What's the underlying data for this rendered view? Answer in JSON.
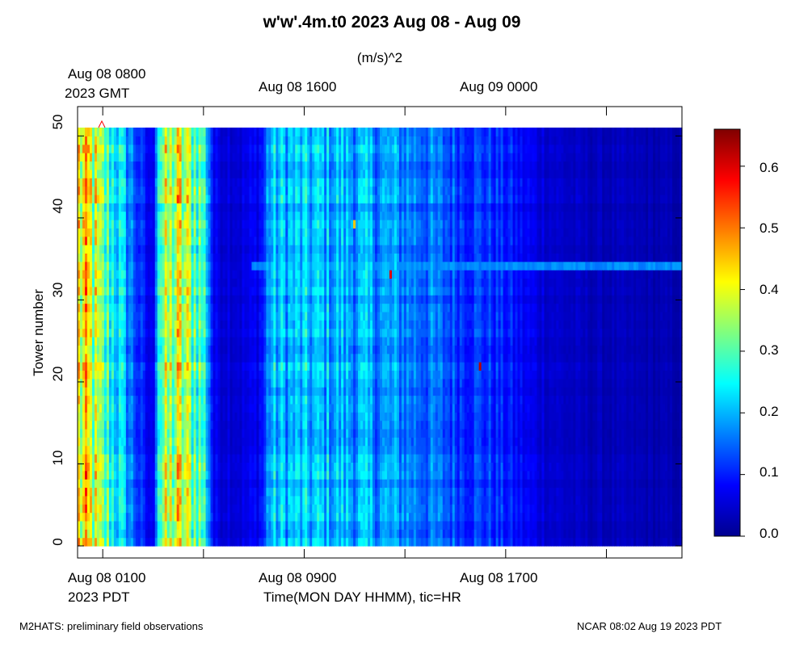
{
  "chart_data": {
    "type": "heatmap",
    "title": "w'w'.4m.t0 2023 Aug 08 - Aug 09",
    "colorbar_label": "(m/s)^2",
    "ylabel": "Tower number",
    "xlabel": "Time(MON DAY HHMM), tic=HR",
    "x_top_labels": [
      "Aug 08 0800",
      "Aug 08 1600",
      "Aug 09 0000"
    ],
    "x_top_timezone": "2023 GMT",
    "x_bottom_labels": [
      "Aug 08 0100",
      "Aug 08 0900",
      "Aug 08 1700"
    ],
    "x_bottom_timezone": "2023 PDT",
    "x_range_pdt": [
      "Aug 08 0000",
      "Aug 09 0000"
    ],
    "y_ticks": [
      "0",
      "10",
      "20",
      "30",
      "40",
      "50"
    ],
    "ylim": [
      0,
      50
    ],
    "colorbar_ticks": [
      "0.0",
      "0.1",
      "0.2",
      "0.3",
      "0.4",
      "0.5",
      "0.6"
    ],
    "crange": [
      0,
      0.66
    ],
    "colormap": "jet",
    "n_towers": 50,
    "hourly_mean_pdt": [
      [
        0.0,
        0.4
      ],
      [
        0.5,
        0.38
      ],
      [
        1.0,
        0.3
      ],
      [
        1.5,
        0.25
      ],
      [
        2.0,
        0.18
      ],
      [
        2.4,
        0.12
      ],
      [
        2.7,
        0.08
      ],
      [
        3.0,
        0.06
      ],
      [
        3.2,
        0.3
      ],
      [
        4.0,
        0.37
      ],
      [
        4.9,
        0.3
      ],
      [
        5.1,
        0.25
      ],
      [
        5.4,
        0.07
      ],
      [
        6.5,
        0.06
      ],
      [
        7.0,
        0.07
      ],
      [
        7.4,
        0.1
      ],
      [
        7.6,
        0.2
      ],
      [
        9.0,
        0.2
      ],
      [
        10.0,
        0.2
      ],
      [
        12.0,
        0.18
      ],
      [
        13.0,
        0.17
      ],
      [
        14.0,
        0.15
      ],
      [
        15.0,
        0.13
      ],
      [
        16.0,
        0.12
      ],
      [
        17.0,
        0.1
      ],
      [
        18.0,
        0.07
      ],
      [
        19.0,
        0.05
      ],
      [
        20.0,
        0.04
      ],
      [
        22.0,
        0.035
      ],
      [
        24.0,
        0.03
      ]
    ],
    "notable_features": [
      {
        "tower": 33,
        "from_pdt": 6.9,
        "to_pdt": 24.0,
        "value": 0.18,
        "description": "elevated band"
      },
      {
        "tower": 21,
        "at_pdt": 16.0,
        "value": 0.62
      },
      {
        "tower": 32,
        "at_pdt": 12.4,
        "value": 0.6
      },
      {
        "tower": 38,
        "at_pdt": 11.0,
        "value": 0.45
      }
    ]
  },
  "footer": {
    "left": "M2HATS: preliminary field observations",
    "right": "NCAR 08:02 Aug 19 2023 PDT"
  }
}
